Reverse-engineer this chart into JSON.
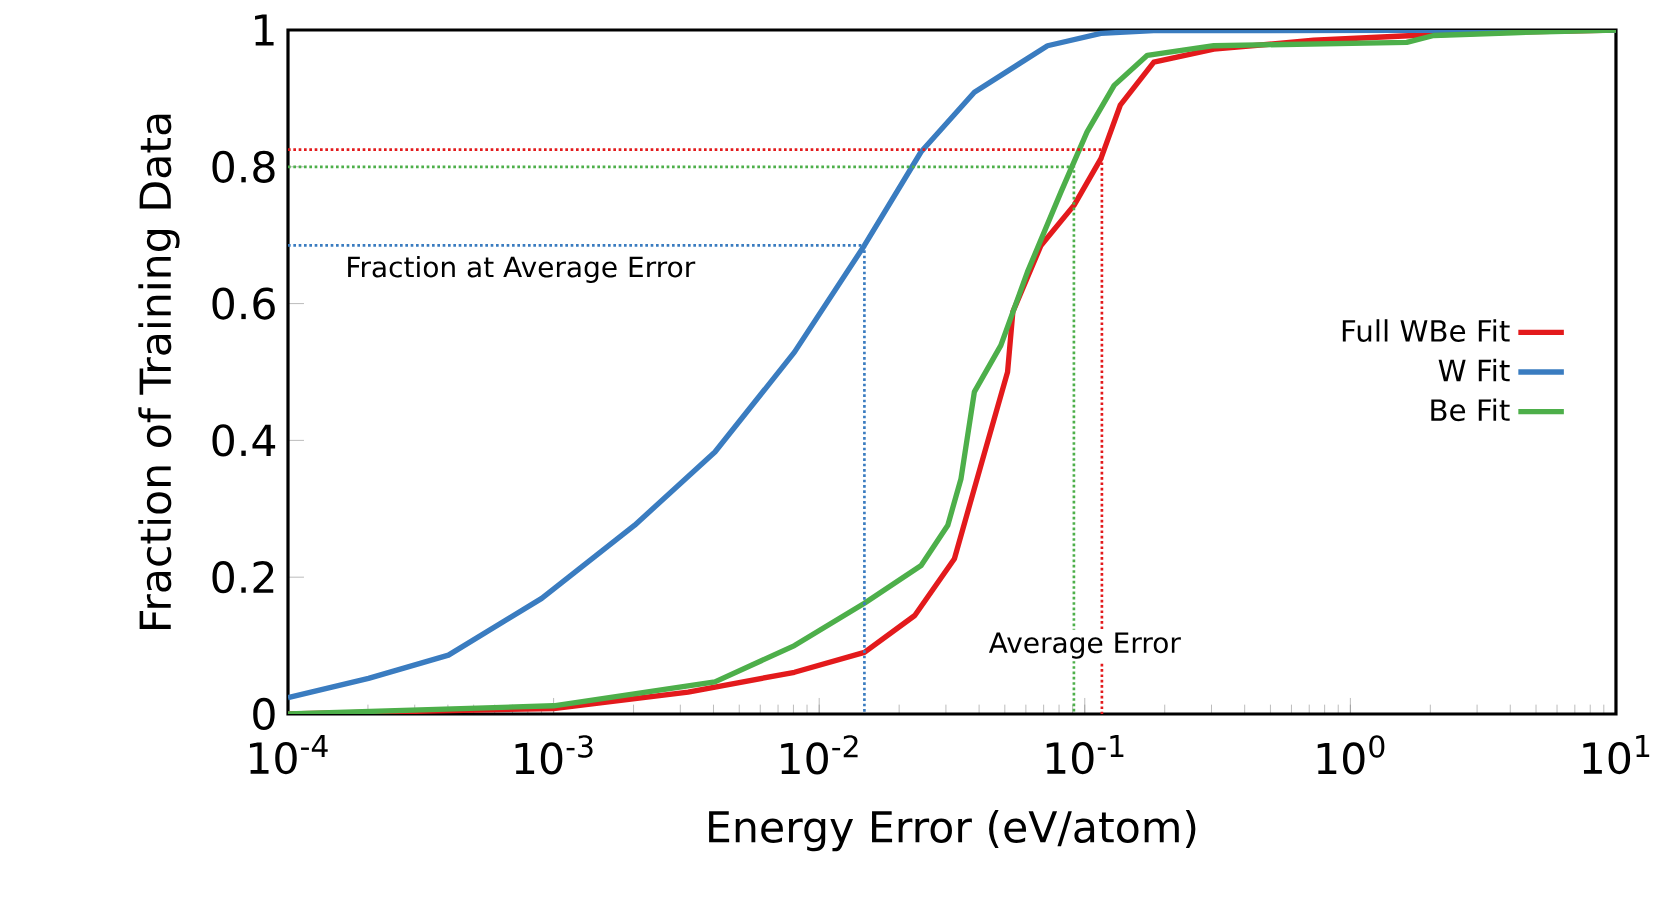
{
  "chart_data": {
    "type": "line",
    "xlabel": "Energy Error (eV/atom)",
    "ylabel": "Fraction of Training Data",
    "log": "x",
    "grid": false,
    "legend": "right",
    "marker": "none",
    "xlim": [
      0.0001,
      10
    ],
    "ylim": [
      0,
      1
    ],
    "xticks": [
      {
        "value": 0.0001,
        "label": "10$^{-4}$"
      },
      {
        "value": 0.001,
        "label": "10$^{-3}$"
      },
      {
        "value": 0.01,
        "label": "10$^{-2}$"
      },
      {
        "value": 0.1,
        "label": "10$^{-1}$"
      },
      {
        "value": 1,
        "label": "10$^{0}$"
      },
      {
        "value": 10,
        "label": "10$^{1}$"
      }
    ],
    "yticks": [
      0,
      0.2,
      0.4,
      0.6,
      0.8,
      1
    ],
    "annotations": [
      "Fraction at Average Error",
      "Average Error"
    ],
    "series": [
      {
        "name": "Full WBe Fit",
        "color": "#e31a1c",
        "x": [
          0.0001,
          0.001,
          0.00321,
          0.00807,
          0.0148,
          0.0229,
          0.0323,
          0.0406,
          0.0512,
          0.0536,
          0.0684,
          0.0912,
          0.115,
          0.136,
          0.182,
          0.306,
          0.728,
          1.73,
          4.11,
          10
        ],
        "values": [
          0,
          0.008,
          0.032,
          0.061,
          0.09,
          0.144,
          0.227,
          0.363,
          0.5,
          0.588,
          0.685,
          0.744,
          0.812,
          0.89,
          0.953,
          0.972,
          0.985,
          0.992,
          0.997,
          1
        ]
      },
      {
        "name": "W Fit",
        "color": "#3a7cc0",
        "x": [
          0.0001,
          0.000201,
          0.000402,
          0.000902,
          0.00202,
          0.00405,
          0.00807,
          0.0148,
          0.0242,
          0.0384,
          0.0724,
          0.115,
          0.182,
          10
        ],
        "values": [
          0.024,
          0.052,
          0.086,
          0.169,
          0.276,
          0.383,
          0.529,
          0.685,
          0.822,
          0.909,
          0.977,
          0.995,
          0.999,
          1
        ]
      },
      {
        "name": "Be Fit",
        "color": "#4daf4a",
        "x": [
          0.0001,
          0.001,
          0.00405,
          0.00807,
          0.0148,
          0.0242,
          0.0305,
          0.0342,
          0.0384,
          0.0483,
          0.0608,
          0.0813,
          0.102,
          0.129,
          0.172,
          0.306,
          1.63,
          2.06,
          4.11,
          10
        ],
        "values": [
          0,
          0.012,
          0.047,
          0.1,
          0.162,
          0.217,
          0.276,
          0.344,
          0.471,
          0.539,
          0.646,
          0.763,
          0.851,
          0.919,
          0.963,
          0.977,
          0.982,
          0.992,
          0.996,
          1
        ]
      },
      {
        "color": "#e31a1c",
        "line_style": "dotted",
        "x": [
          0.0001,
          0.116,
          0.116
        ],
        "values": [
          0.825,
          0.825,
          0
        ]
      },
      {
        "color": "#4daf4a",
        "line_style": "dotted",
        "x": [
          0.0001,
          0.091,
          0.091
        ],
        "values": [
          0.8,
          0.8,
          0
        ]
      },
      {
        "color": "#3a7cc0",
        "line_style": "dotted",
        "x": [
          0.0001,
          0.0148,
          0.0148
        ],
        "values": [
          0.685,
          0.685,
          0
        ]
      }
    ]
  }
}
